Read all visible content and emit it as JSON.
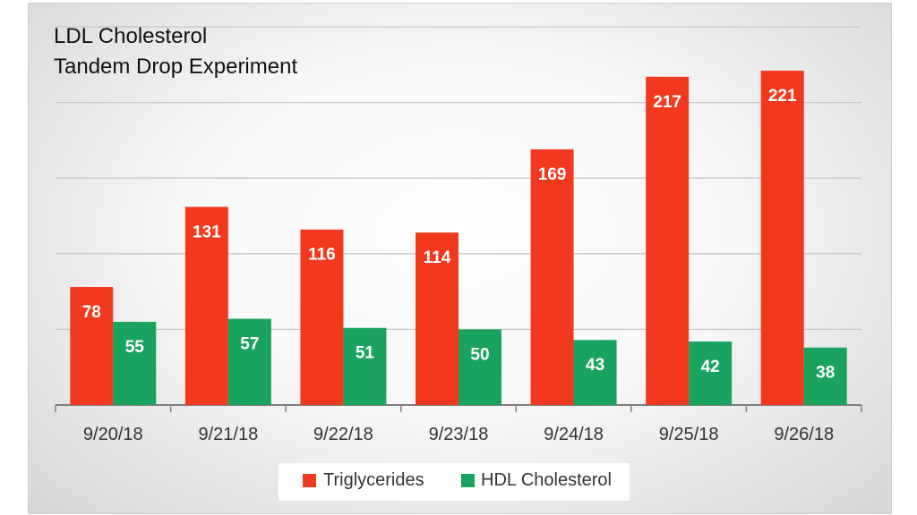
{
  "chart_data": {
    "type": "bar",
    "title": [
      "LDL Cholesterol",
      "Tandem Drop Experiment"
    ],
    "categories": [
      "9/20/18",
      "9/21/18",
      "9/22/18",
      "9/23/18",
      "9/24/18",
      "9/25/18",
      "9/26/18"
    ],
    "series": [
      {
        "name": "Triglycerides",
        "color": "#f2391e",
        "values": [
          78,
          131,
          116,
          114,
          169,
          217,
          221
        ]
      },
      {
        "name": "HDL Cholesterol",
        "color": "#1aa35e",
        "values": [
          55,
          57,
          51,
          50,
          43,
          42,
          38
        ]
      }
    ],
    "ylim": [
      0,
      250
    ],
    "gridlines": [
      0,
      50,
      100,
      150,
      200,
      250
    ],
    "legend_position": "bottom",
    "xlabel": "",
    "ylabel": ""
  }
}
